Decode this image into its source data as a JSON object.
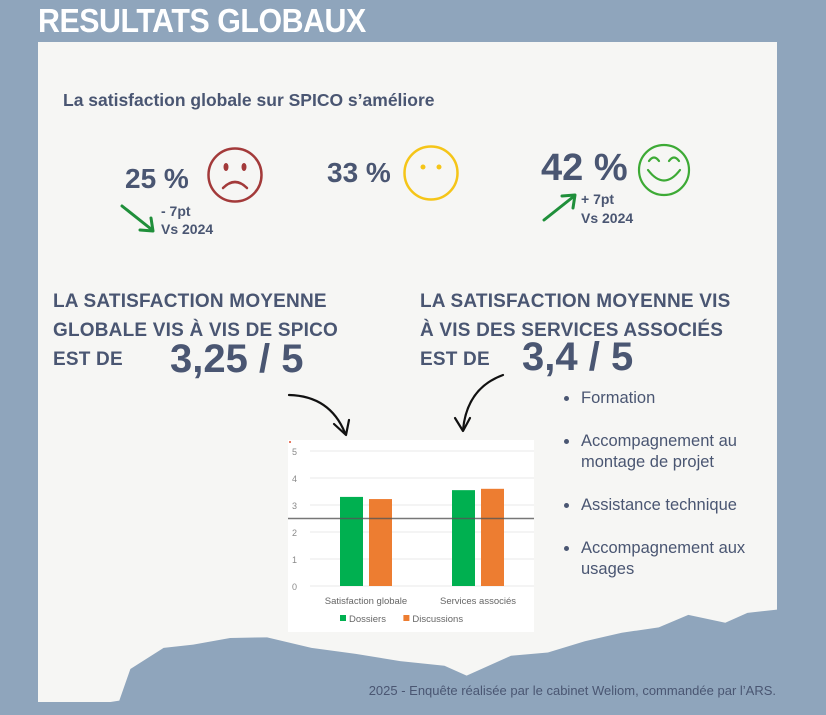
{
  "header": {
    "title": "RESULTATS GLOBAUX"
  },
  "subtitle": "La satisfaction globale sur SPICO s’améliore",
  "sentiments": [
    {
      "id": "unsatisfied",
      "percent": "25 %",
      "delta": "- 7pt",
      "comparison": "Vs 2024",
      "trend": "down",
      "icon": "sad-face-icon",
      "color": "#a33a3a"
    },
    {
      "id": "neutral",
      "percent": "33 %",
      "icon": "neutral-face-icon",
      "color": "#f5c518"
    },
    {
      "id": "satisfied",
      "percent": "42 %",
      "delta": "+ 7pt",
      "comparison": "Vs 2024",
      "trend": "up",
      "icon": "happy-face-icon",
      "color": "#3daa35"
    }
  ],
  "trend_arrow_color": "#1f8f3a",
  "global_block": {
    "line1": "LA SATISFACTION MOYENNE",
    "line2": "GLOBALE VIS À VIS DE SPICO",
    "line3": "EST DE",
    "score": "3,25 / 5"
  },
  "services_block": {
    "line1": "LA SATISFACTION MOYENNE VIS",
    "line2": "À VIS DES SERVICES ASSOCIÉS",
    "line3": "EST DE",
    "score": "3,4 / 5"
  },
  "services_list": [
    "Formation",
    "Accompagnement au montage de projet",
    "Assistance technique",
    "Accompagnement aux usages"
  ],
  "chart_data": {
    "type": "bar",
    "title": "",
    "xlabel": "",
    "ylabel": "",
    "categories": [
      "Satisfaction globale",
      "Services associés"
    ],
    "series": [
      {
        "name": "Dossiers",
        "color": "#00b050",
        "values": [
          3.3,
          3.55
        ]
      },
      {
        "name": "Discussions",
        "color": "#ed7d31",
        "values": [
          3.22,
          3.6
        ]
      }
    ],
    "reference_line": 2.5,
    "ylim": [
      0,
      5
    ],
    "yticks": [
      0,
      1,
      2,
      3,
      4,
      5
    ],
    "grid": true,
    "legend_position": "bottom"
  },
  "footer": "2025 - Enquête réalisée par le cabinet Weliom, commandée par l’ARS."
}
